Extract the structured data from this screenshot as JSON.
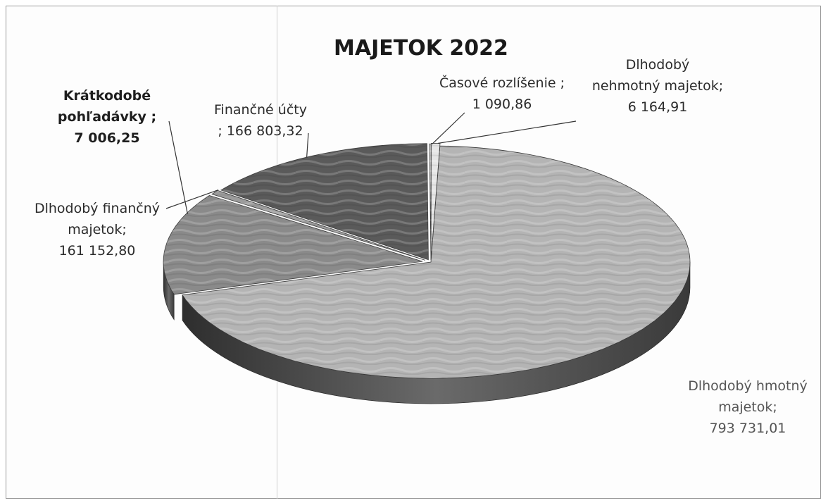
{
  "chart_data": {
    "type": "pie",
    "title": "MAJETOK 2022",
    "slices": [
      {
        "name": "Dlhodobý hmotný majetok",
        "value": 793731.01,
        "label_lines": [
          "Dlhodobý hmotný",
          "majetok;",
          "793 731,01"
        ],
        "color": "#b4b4b4"
      },
      {
        "name": "Dlhodobý finančný majetok",
        "value": 161152.8,
        "label_lines": [
          "Dlhodobý finančný",
          "majetok;",
          "161 152,80"
        ],
        "color": "#8a8a8a"
      },
      {
        "name": "Krátkodobé pohľadávky",
        "value": 7006.25,
        "label_lines": [
          "Krátkodobé",
          "pohľadávky ;",
          "7 006,25"
        ],
        "color": "#9c9c9c"
      },
      {
        "name": "Finančné účty",
        "value": 166803.32,
        "label_lines": [
          "Finančné účty",
          "; 166 803,32"
        ],
        "color": "#5a5a5a"
      },
      {
        "name": "Časové rozlíšenie",
        "value": 1090.86,
        "label_lines": [
          "Časové rozlíšenie ;",
          "1 090,86"
        ],
        "color": "#c8c8c8"
      },
      {
        "name": "Dlhodobý nehmotný majetok",
        "value": 6164.91,
        "label_lines": [
          "Dlhodobý",
          "nehmotný majetok;",
          "6 164,91"
        ],
        "color": "#e6e6e6"
      }
    ]
  }
}
